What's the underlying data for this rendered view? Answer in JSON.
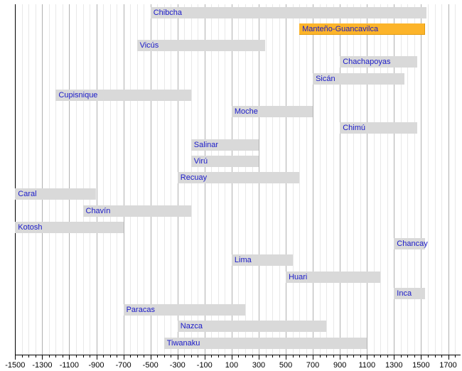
{
  "chart_data": {
    "type": "bar",
    "subtype": "horizontal-timeline-gantt",
    "title": "",
    "xlabel": "",
    "ylabel": "",
    "x_axis": {
      "min": -1500,
      "max": 1700,
      "major_tick_step": 200,
      "minor_tick_step": 50,
      "tick_labels": [
        "-1500",
        "-1300",
        "-1100",
        "-900",
        "-700",
        "-500",
        "-300",
        "-100",
        "100",
        "300",
        "500",
        "700",
        "900",
        "1100",
        "1300",
        "1500",
        "1700"
      ]
    },
    "grid": true,
    "legend": false,
    "series": [
      {
        "name": "Chibcha",
        "start": -500,
        "end": 1540,
        "highlight": false
      },
      {
        "name": "Manteño-Guancavilca",
        "start": 600,
        "end": 1530,
        "highlight": true
      },
      {
        "name": "Vicús",
        "start": -600,
        "end": 350,
        "highlight": false
      },
      {
        "name": "Chachapoyas",
        "start": 900,
        "end": 1470,
        "highlight": false
      },
      {
        "name": "Sicán",
        "start": 700,
        "end": 1375,
        "highlight": false
      },
      {
        "name": "Cupisnique",
        "start": -1200,
        "end": -200,
        "highlight": false
      },
      {
        "name": "Moche",
        "start": 100,
        "end": 700,
        "highlight": false
      },
      {
        "name": "Chimú",
        "start": 900,
        "end": 1470,
        "highlight": false
      },
      {
        "name": "Salinar",
        "start": -200,
        "end": 300,
        "highlight": false
      },
      {
        "name": "Virú",
        "start": -200,
        "end": 300,
        "highlight": false
      },
      {
        "name": "Recuay",
        "start": -300,
        "end": 600,
        "highlight": false
      },
      {
        "name": "Caral",
        "start": -1500,
        "end": -900,
        "highlight": false
      },
      {
        "name": "Chavín",
        "start": -1000,
        "end": -200,
        "highlight": false
      },
      {
        "name": "Kotosh",
        "start": -1500,
        "end": -700,
        "highlight": false
      },
      {
        "name": "Chancay",
        "start": 1300,
        "end": 1530,
        "highlight": false
      },
      {
        "name": "Lima",
        "start": 100,
        "end": 550,
        "highlight": false
      },
      {
        "name": "Huari",
        "start": 500,
        "end": 1200,
        "highlight": false
      },
      {
        "name": "Inca",
        "start": 1300,
        "end": 1530,
        "highlight": false
      },
      {
        "name": "Paracas",
        "start": -700,
        "end": 200,
        "highlight": false
      },
      {
        "name": "Nazca",
        "start": -300,
        "end": 800,
        "highlight": false
      },
      {
        "name": "Tiwanaku",
        "start": -400,
        "end": 1100,
        "highlight": false
      }
    ]
  },
  "colors": {
    "background": "#ffffff",
    "bar_fill": "#d9d9d9",
    "highlight_fill": "#fcb42a",
    "highlight_edge": "#e0990f",
    "label_text": "#1a1ac8",
    "grid_minor": "#e8e8e8",
    "grid_major": "#b0b0b0",
    "axis": "#000000",
    "tick_label": "#000000"
  }
}
